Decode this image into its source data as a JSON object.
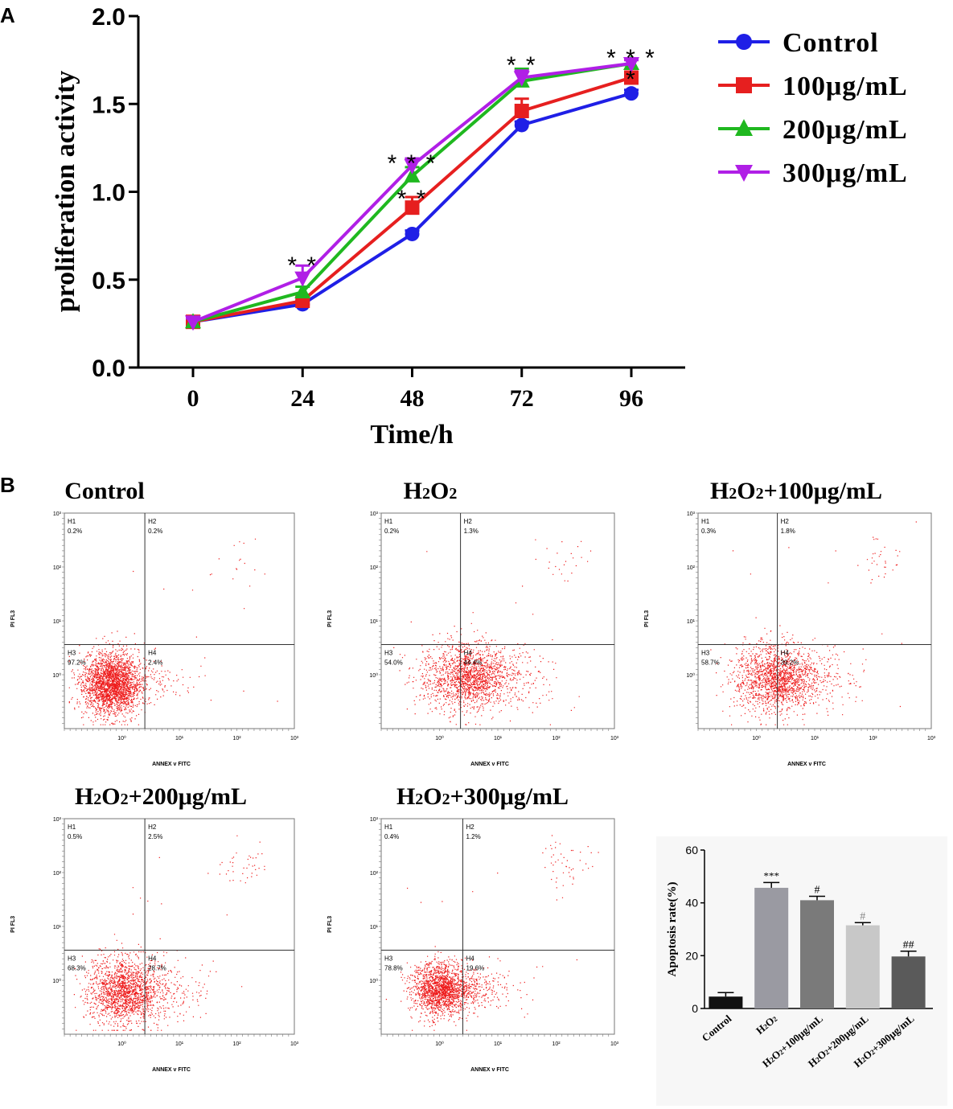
{
  "panel_a": {
    "label": "A",
    "chart_data": {
      "type": "line",
      "xlabel": "Time/h",
      "ylabel": "proliferation activity",
      "x": [
        0,
        24,
        48,
        72,
        96
      ],
      "ylim": [
        0,
        2.0
      ],
      "yticks": [
        "0.0",
        "0.5",
        "1.0",
        "1.5",
        "2.0"
      ],
      "xticks": [
        "0",
        "24",
        "48",
        "72",
        "96"
      ],
      "legend_position": "top-right",
      "series": [
        {
          "name": "Control",
          "color": "#1f1fe6",
          "marker": "circle",
          "values": [
            0.26,
            0.36,
            0.76,
            1.38,
            1.56
          ],
          "errors": [
            0.02,
            0.02,
            0.02,
            0.02,
            0.02
          ]
        },
        {
          "name": "100μg/mL",
          "color": "#e61f1f",
          "marker": "square",
          "values": [
            0.26,
            0.38,
            0.91,
            1.46,
            1.65
          ],
          "errors": [
            0.02,
            0.02,
            0.06,
            0.07,
            0.03
          ]
        },
        {
          "name": "200μg/mL",
          "color": "#1fb81f",
          "marker": "triangle-up",
          "values": [
            0.26,
            0.43,
            1.09,
            1.63,
            1.73
          ],
          "errors": [
            0.02,
            0.03,
            0.05,
            0.07,
            0.02
          ]
        },
        {
          "name": "300μg/mL",
          "color": "#b01fe6",
          "marker": "triangle-down",
          "values": [
            0.26,
            0.51,
            1.15,
            1.65,
            1.73
          ],
          "errors": [
            0.02,
            0.07,
            0.04,
            0.04,
            0.02
          ]
        }
      ],
      "annotations": [
        {
          "x": 24,
          "y": 0.6,
          "text": "* *"
        },
        {
          "x": 48,
          "y": 1.18,
          "text": "* * *"
        },
        {
          "x": 48,
          "y": 0.98,
          "text": "* *"
        },
        {
          "x": 72,
          "y": 1.74,
          "text": "* *"
        },
        {
          "x": 96,
          "y": 1.78,
          "text": "* * *"
        },
        {
          "x": 96,
          "y": 1.66,
          "text": "*"
        }
      ]
    }
  },
  "panel_b": {
    "label": "B",
    "axis_x_label": "ANNEX v FITC",
    "axis_y_label": "PI FL3",
    "flow_plots": [
      {
        "title": "Control",
        "H1": "0.2%",
        "H2": "0.2%",
        "H3": "97.2%",
        "H4": "2.4%",
        "dots": 2600
      },
      {
        "title": "H2O2",
        "H1": "0.2%",
        "H2": "1.3%",
        "H3": "54.0%",
        "H4": "44.4%",
        "dots": 2600
      },
      {
        "title": "H2O2+100μg/mL",
        "H1": "0.3%",
        "H2": "1.8%",
        "H3": "58.7%",
        "H4": "39.2%",
        "dots": 2600
      },
      {
        "title": "H2O2+200μg/mL",
        "H1": "0.5%",
        "H2": "2.5%",
        "H3": "68.3%",
        "H4": "28.7%",
        "dots": 2600
      },
      {
        "title": "H2O2+300μg/mL",
        "H1": "0.4%",
        "H2": "1.2%",
        "H3": "78.8%",
        "H4": "19.6%",
        "dots": 2600
      }
    ],
    "chart_data": {
      "type": "bar",
      "ylabel": "Apoptosis rate(%)",
      "ylim": [
        0,
        60
      ],
      "yticks": [
        "0",
        "20",
        "40",
        "60"
      ],
      "categories": [
        "Control",
        "H2O2",
        "H2O2+100μg/mL",
        "H2O2+200μg/mL",
        "H2O2+300μg/mL"
      ],
      "values": [
        4.5,
        45.7,
        41.0,
        31.5,
        19.7
      ],
      "errors": [
        1.5,
        2.0,
        1.5,
        1.0,
        2.0
      ],
      "colors": [
        "#111111",
        "#9a9aa2",
        "#7a7a7a",
        "#c8c8c8",
        "#5a5a5a"
      ],
      "significance": [
        "",
        "***",
        "#",
        "#",
        "##"
      ]
    }
  }
}
